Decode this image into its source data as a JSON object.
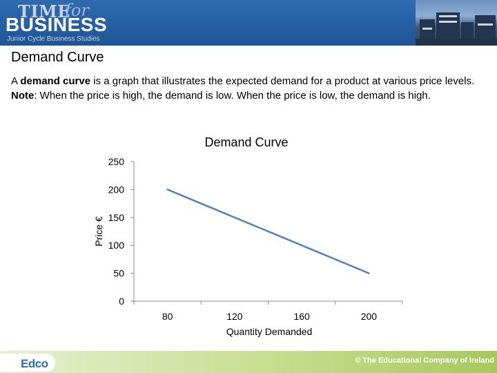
{
  "header": {
    "logo_time": "TIME",
    "logo_for": "for",
    "logo_business": "BUSINESS",
    "logo_subtitle": "Junior Cycle Business Studies"
  },
  "page_title": "Demand Curve",
  "paragraph": {
    "line1_pre": "A ",
    "line1_bold": "demand curve",
    "line1_post": " is a graph that illustrates the expected demand for a product at various price levels.",
    "note_label": "Note",
    "note_text": ": When the price is high, the demand is low. When the price is low, the demand is high."
  },
  "chart_data": {
    "type": "line",
    "title": "Demand Curve",
    "xlabel": "Quantity Demanded",
    "ylabel": "Price €",
    "categories": [
      80,
      120,
      160,
      200
    ],
    "x": [
      80,
      120,
      160,
      200
    ],
    "series": [
      {
        "values": [
          200,
          150,
          100,
          50
        ]
      }
    ],
    "yticks": [
      0,
      50,
      100,
      150,
      200,
      250
    ],
    "ylim": [
      0,
      250
    ],
    "grid": false,
    "legend": "none",
    "line_color": "#4f81bd"
  },
  "footer": {
    "logo": "Edco",
    "copyright": "© The Educational Company of Ireland"
  }
}
